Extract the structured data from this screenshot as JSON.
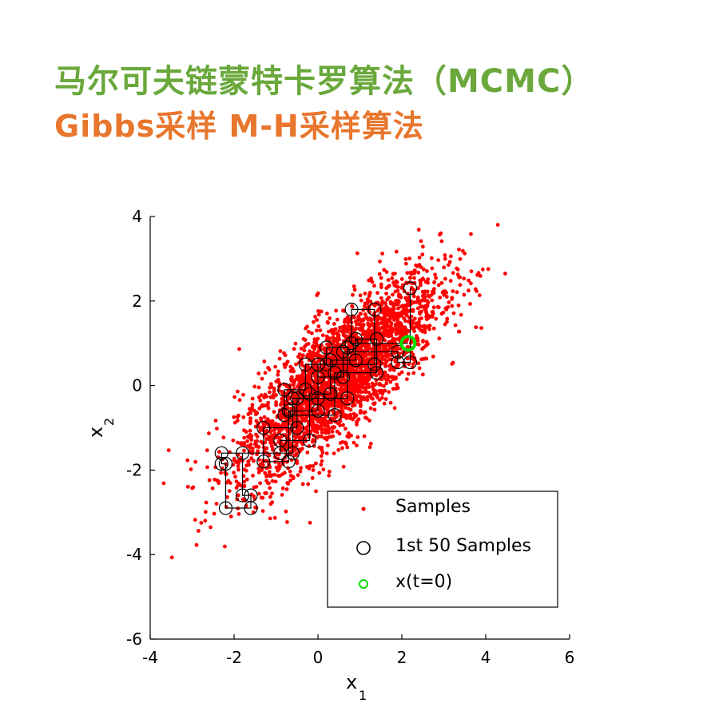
{
  "header": {
    "title_line1": "马尔可夫链蒙特卡罗算法（MCMC）",
    "title_line2": "Gibbs采样 M-H采样算法",
    "color_line1": "#6aa83c",
    "color_line2": "#e8762d"
  },
  "chart_data": {
    "type": "scatter",
    "xlabel": "x",
    "xlabel_sub": "1",
    "ylabel": "x",
    "ylabel_sub": "2",
    "xlim": [
      -4,
      6
    ],
    "ylim": [
      -6,
      4
    ],
    "xticks": [
      -4,
      -2,
      0,
      2,
      4,
      6
    ],
    "yticks": [
      -6,
      -4,
      -2,
      0,
      2,
      4
    ],
    "grid": false,
    "legend_position": "bottom-right",
    "legend": [
      {
        "label": "Samples",
        "marker": "dot",
        "color": "#ff0000"
      },
      {
        "label": "1st 50 Samples",
        "marker": "circle",
        "color": "#000000"
      },
      {
        "label": "x(t=0)",
        "marker": "circle",
        "color": "#00dd00"
      }
    ],
    "distribution": {
      "mean": [
        0.5,
        0.2
      ],
      "sd": [
        1.2,
        1.2
      ],
      "correlation": 0.8,
      "n": 3000
    },
    "series": [
      {
        "name": "1st 50 Samples",
        "path": [
          [
            2.15,
            1.0
          ],
          [
            0.8,
            1.0
          ],
          [
            0.8,
            1.8
          ],
          [
            1.35,
            1.8
          ],
          [
            1.35,
            0.5
          ],
          [
            0.0,
            0.5
          ],
          [
            0.0,
            -0.3
          ],
          [
            -0.6,
            -0.3
          ],
          [
            -0.6,
            -1.6
          ],
          [
            -2.3,
            -1.6
          ],
          [
            -2.3,
            -1.85
          ],
          [
            -2.2,
            -1.85
          ],
          [
            -2.2,
            -2.9
          ],
          [
            -1.6,
            -2.9
          ],
          [
            -1.6,
            -2.6
          ],
          [
            -1.8,
            -2.6
          ],
          [
            -1.8,
            -1.6
          ],
          [
            -0.9,
            -1.6
          ],
          [
            -0.9,
            -1.3
          ],
          [
            -0.2,
            -1.3
          ],
          [
            -0.2,
            -0.2
          ],
          [
            0.3,
            -0.2
          ],
          [
            0.3,
            0.6
          ],
          [
            0.9,
            0.6
          ],
          [
            0.9,
            1.1
          ],
          [
            1.4,
            1.1
          ],
          [
            1.4,
            0.3
          ],
          [
            0.4,
            0.3
          ],
          [
            0.4,
            -0.7
          ],
          [
            -0.8,
            -0.7
          ],
          [
            -0.8,
            -0.1
          ],
          [
            -0.3,
            -0.1
          ],
          [
            -0.3,
            0.5
          ],
          [
            0.2,
            0.5
          ],
          [
            0.2,
            0.9
          ],
          [
            0.7,
            0.9
          ],
          [
            0.7,
            -0.3
          ],
          [
            -0.5,
            -0.3
          ],
          [
            -0.5,
            -1.0
          ],
          [
            -1.3,
            -1.0
          ],
          [
            -1.3,
            -1.8
          ],
          [
            -0.7,
            -1.8
          ],
          [
            -0.7,
            -0.6
          ],
          [
            0.0,
            -0.6
          ],
          [
            0.0,
            0.2
          ],
          [
            0.6,
            0.2
          ],
          [
            0.6,
            0.8
          ],
          [
            1.9,
            0.8
          ],
          [
            1.9,
            0.55
          ],
          [
            2.2,
            0.55
          ],
          [
            2.2,
            2.3
          ]
        ]
      }
    ],
    "start": {
      "name": "x(t=0)",
      "x": 2.15,
      "y": 1.0
    }
  }
}
